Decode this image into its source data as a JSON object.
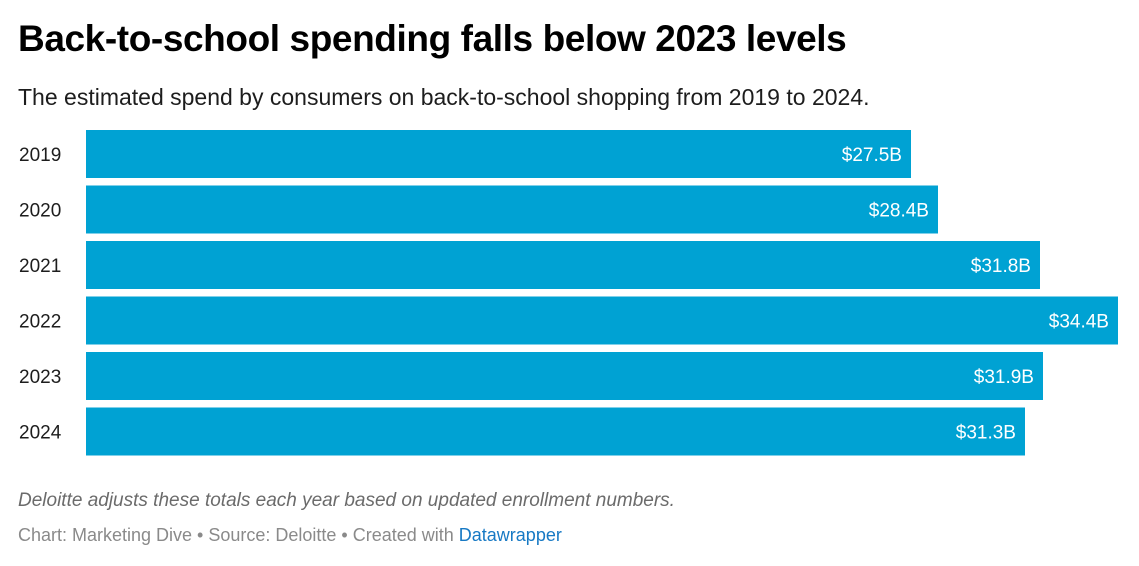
{
  "header": {
    "title": "Back-to-school spending falls below 2023 levels",
    "subtitle": "The estimated spend by consumers on back-to-school shopping from 2019 to 2024."
  },
  "footnote": {
    "note": "Deloitte adjusts these totals each year based on updated enrollment numbers.",
    "credits_prefix": "Chart: Marketing Dive • Source: Deloitte • Created with ",
    "credits_link": "Datawrapper"
  },
  "colors": {
    "bar": "#00a2d3",
    "label_inside": "#ffffff",
    "category_text": "#1d1d1d",
    "link": "#1779c4"
  },
  "chart_data": {
    "type": "bar",
    "orientation": "horizontal",
    "categories": [
      "2019",
      "2020",
      "2021",
      "2022",
      "2023",
      "2024"
    ],
    "values": [
      27.5,
      28.4,
      31.8,
      34.4,
      31.9,
      31.3
    ],
    "value_labels": [
      "$27.5B",
      "$28.4B",
      "$31.8B",
      "$34.4B",
      "$31.9B",
      "$31.3B"
    ],
    "xlim": [
      0,
      34.4
    ],
    "grid": false,
    "legend": "none"
  }
}
